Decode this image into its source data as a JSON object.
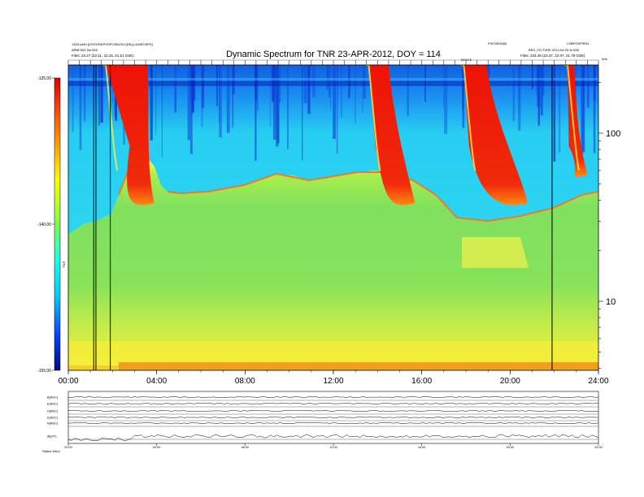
{
  "header": {
    "title": "Dynamic Spectrum for TNR 23-APR-2012, DOY = 114",
    "left_line1": "1303-wNH [DOSGRAPHSPOSBOSC(DEy)=ANROSPS]",
    "left_line2": "ARBF553 Ser3S5",
    "left_line3": "Files:   23.27 (23.11, 22.15, 21.51 GSE)",
    "right_line1": "PIXOSEAND",
    "right_line2": "LSBPOSFREN",
    "right_line3": "BRS_FICTURE 2012-04-25 N:S2B",
    "right_line4": "Files:   233.49 (23.37, 22.07, 21.79 GSE)",
    "event_label": "DEVICE",
    "corner_label": "kHz"
  },
  "chart_data": {
    "type": "heatmap",
    "title": "Dynamic Spectrum for TNR 23-APR-2012, DOY = 114",
    "xlabel": "",
    "ylabel": "",
    "x_range_hours": [
      0,
      24
    ],
    "x_ticks": [
      "00:00",
      "04:00",
      "08:00",
      "12:00",
      "16:00",
      "20:00",
      "24:00"
    ],
    "y_right_scale": "log",
    "y_right_ticks": [
      "100",
      "10"
    ],
    "colorbar": {
      "label": "TNR",
      "ticks": [
        "-125.00",
        "-140.00",
        "-155.00"
      ],
      "range": [
        -155,
        -125
      ],
      "colors": [
        "#000a8a",
        "#0044ff",
        "#00c8ff",
        "#18ffe8",
        "#7dff4a",
        "#f8ff00",
        "#ffb000",
        "#ff4000",
        "#e00000"
      ]
    },
    "vertical_lines_hours": [
      1.15,
      1.25,
      1.9,
      21.9
    ],
    "regions": {
      "background_high": "#2ad6f0",
      "plasma_band": "#7ee060",
      "low_band": "#f4f240",
      "bottom_strip": "#f0a020",
      "burst": "#ee1a0a"
    },
    "bursts": [
      {
        "start_hour": 1.7,
        "peak_hour": 3.5,
        "end_hour": 3.9
      },
      {
        "start_hour": 13.6,
        "peak_hour": 14.1,
        "end_hour": 15.7
      },
      {
        "start_hour": 17.9,
        "peak_hour": 18.3,
        "end_hour": 20.8
      },
      {
        "start_hour": 22.6,
        "peak_hour": 22.7,
        "end_hour": 23.5
      }
    ]
  },
  "bottom_panel": {
    "channel_labels": [
      "B(ADC)",
      "E(ADC)",
      "D(ADC)",
      "E(ADC)",
      "N(ADC)",
      "|B|(nT)"
    ],
    "x_ticks": [
      "00:00",
      "04:00",
      "08:00",
      "12:00",
      "16:00",
      "20:00",
      "24:00"
    ],
    "footer_label": "Status  Wind"
  }
}
